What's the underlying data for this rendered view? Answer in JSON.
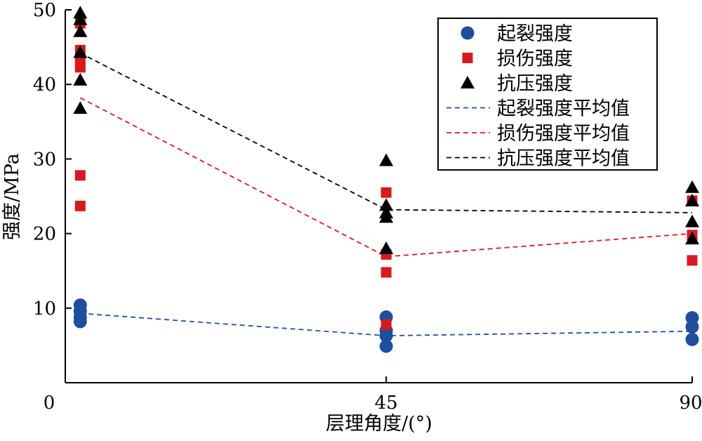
{
  "chart_data": {
    "type": "scatter",
    "xlabel": "层理角度/(°)",
    "ylabel": "强度/MPa",
    "x_ticks": [
      0,
      45,
      90
    ],
    "y_ticks": [
      10,
      20,
      30,
      40,
      50
    ],
    "xlim": [
      -2.2,
      90
    ],
    "ylim": [
      0,
      50
    ],
    "grid": false,
    "legend_position": "top-right",
    "x_category_positions": {
      "0": 0,
      "45": 45,
      "90": 90
    },
    "series": [
      {
        "name": "起裂强度",
        "kind": "points",
        "marker": "circle",
        "color": "#1f4e9e",
        "points": [
          [
            0,
            10.4
          ],
          [
            0,
            9.6
          ],
          [
            0,
            8.8
          ],
          [
            0,
            8.2
          ],
          [
            45,
            8.8
          ],
          [
            45,
            7.0
          ],
          [
            45,
            6.3
          ],
          [
            45,
            4.9
          ],
          [
            90,
            8.7
          ],
          [
            90,
            7.5
          ],
          [
            90,
            5.8
          ]
        ]
      },
      {
        "name": "损伤强度",
        "kind": "points",
        "marker": "square",
        "color": "#d71920",
        "points": [
          [
            0,
            48.2
          ],
          [
            0,
            44.6
          ],
          [
            0,
            43.0
          ],
          [
            0,
            42.3
          ],
          [
            0,
            27.8
          ],
          [
            0,
            23.7
          ],
          [
            45,
            25.5
          ],
          [
            45,
            17.2
          ],
          [
            45,
            14.8
          ],
          [
            45,
            7.8
          ],
          [
            90,
            24.4
          ],
          [
            90,
            19.8
          ],
          [
            90,
            16.4
          ]
        ]
      },
      {
        "name": "抗压强度",
        "kind": "points",
        "marker": "triangle",
        "color": "#000000",
        "points": [
          [
            0,
            49.6
          ],
          [
            0,
            48.7
          ],
          [
            0,
            47.1
          ],
          [
            0,
            44.3
          ],
          [
            0,
            40.6
          ],
          [
            0,
            36.8
          ],
          [
            45,
            29.8
          ],
          [
            45,
            23.8
          ],
          [
            45,
            22.8
          ],
          [
            45,
            22.2
          ],
          [
            45,
            18.0
          ],
          [
            90,
            26.2
          ],
          [
            90,
            24.4
          ],
          [
            90,
            21.6
          ],
          [
            90,
            19.3
          ]
        ]
      },
      {
        "name": "起裂强度平均值",
        "kind": "line",
        "dash": true,
        "color": "#1f4e9e",
        "points": [
          [
            0,
            9.3
          ],
          [
            45,
            6.3
          ],
          [
            90,
            6.9
          ]
        ]
      },
      {
        "name": "损伤强度平均值",
        "kind": "line",
        "dash": true,
        "color": "#d71920",
        "points": [
          [
            0,
            38.2
          ],
          [
            45,
            16.9
          ],
          [
            90,
            20.0
          ]
        ]
      },
      {
        "name": "抗压强度平均值",
        "kind": "line",
        "dash": true,
        "color": "#000000",
        "points": [
          [
            0,
            44.2
          ],
          [
            45,
            23.2
          ],
          [
            90,
            22.8
          ]
        ]
      }
    ]
  }
}
